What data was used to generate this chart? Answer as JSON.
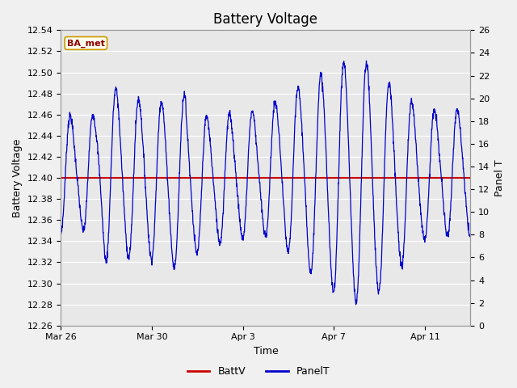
{
  "title": "Battery Voltage",
  "xlabel": "Time",
  "ylabel_left": "Battery Voltage",
  "ylabel_right": "Panel T",
  "background_color": "#f0f0f0",
  "plot_bg_color": "#e8e8e8",
  "grid_color": "white",
  "ylim_left": [
    12.26,
    12.54
  ],
  "ylim_right": [
    0,
    26
  ],
  "yticks_left": [
    12.26,
    12.28,
    12.3,
    12.32,
    12.34,
    12.36,
    12.38,
    12.4,
    12.42,
    12.44,
    12.46,
    12.48,
    12.5,
    12.52,
    12.54
  ],
  "yticks_right": [
    0,
    2,
    4,
    6,
    8,
    10,
    12,
    14,
    16,
    18,
    20,
    22,
    24,
    26
  ],
  "xtick_labels": [
    "Mar 26",
    "Mar 30",
    "Apr 3",
    "Apr 7",
    "Apr 11"
  ],
  "xtick_positions": [
    0,
    4,
    8,
    12,
    16
  ],
  "battv_value": 12.4,
  "battv_color": "#cc0000",
  "panelt_color": "#0000cc",
  "legend_battv": "BattV",
  "legend_panelt": "PanelT",
  "badge_text": "BA_met",
  "badge_bg": "#fffff0",
  "badge_border": "#cc9900",
  "title_fontsize": 12,
  "axis_label_fontsize": 9,
  "tick_fontsize": 8,
  "legend_fontsize": 9,
  "n_days": 18,
  "xlim": [
    0,
    18
  ]
}
